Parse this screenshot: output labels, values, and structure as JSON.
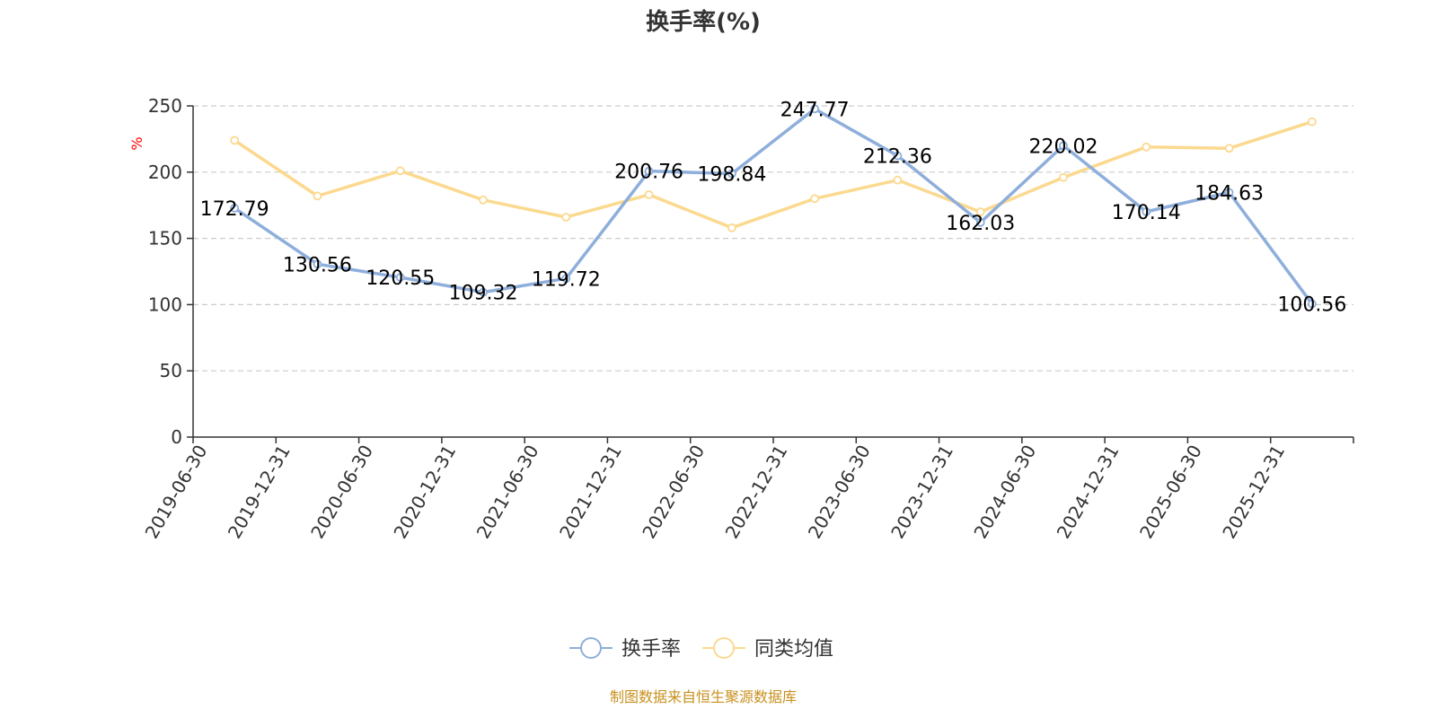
{
  "chart_data": {
    "type": "line",
    "title": "换手率(%)",
    "ylabel": "%",
    "xlabel": "",
    "ylim": [
      0,
      250
    ],
    "yticks": [
      0,
      50,
      100,
      150,
      200,
      250
    ],
    "grid": true,
    "legend_position": "bottom",
    "categories": [
      "2019-06-30",
      "2019-12-31",
      "2020-06-30",
      "2020-12-31",
      "2021-06-30",
      "2021-12-31",
      "2022-06-30",
      "2022-12-31",
      "2023-06-30",
      "2023-12-31",
      "2024-06-30",
      "2024-12-31",
      "2025-06-30",
      "2025-12-31"
    ],
    "series": [
      {
        "name": "换手率",
        "color": "#8eaedb",
        "values": [
          172.79,
          130.56,
          120.55,
          109.32,
          119.72,
          200.76,
          198.84,
          247.77,
          212.36,
          162.03,
          220.02,
          170.14,
          184.63,
          100.56
        ],
        "labels": [
          "172.79",
          "130.56",
          "120.55",
          "109.32",
          "119.72",
          "200.76",
          "198.84",
          "247.77",
          "212.36",
          "162.03",
          "220.02",
          "170.14",
          "184.63",
          "100.56"
        ]
      },
      {
        "name": "同类均值",
        "color": "#fbd98f",
        "values": [
          224,
          182,
          201,
          179,
          166,
          183,
          158,
          180,
          194,
          170,
          196,
          219,
          218,
          238
        ]
      }
    ]
  },
  "source_note": "制图数据来自恒生聚源数据库"
}
